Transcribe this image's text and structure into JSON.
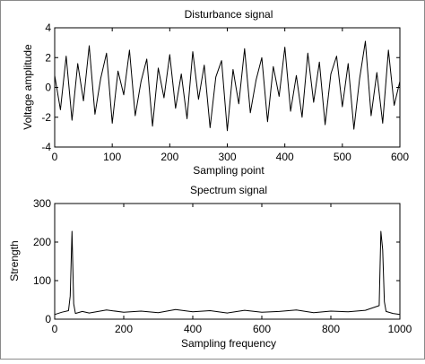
{
  "chart_data": [
    {
      "type": "line",
      "title": "Disturbance signal",
      "xlabel": "Sampling point",
      "ylabel": "Voltage amplitude",
      "xlim": [
        0,
        600
      ],
      "ylim": [
        -4,
        4
      ],
      "xticks": [
        0,
        100,
        200,
        300,
        400,
        500,
        600
      ],
      "yticks": [
        -4,
        -2,
        0,
        2,
        4
      ],
      "grid": false,
      "series": [
        {
          "name": "",
          "description_of_values": "random noise around 0, mostly between -3 and 3",
          "x": [
            0,
            10,
            20,
            30,
            40,
            50,
            60,
            70,
            80,
            90,
            100,
            110,
            120,
            130,
            140,
            150,
            160,
            170,
            180,
            190,
            200,
            210,
            220,
            230,
            240,
            250,
            260,
            270,
            280,
            290,
            300,
            310,
            320,
            330,
            340,
            350,
            360,
            370,
            380,
            390,
            400,
            410,
            420,
            430,
            440,
            450,
            460,
            470,
            480,
            490,
            500,
            510,
            520,
            530,
            540,
            550,
            560,
            570,
            580,
            590,
            600
          ],
          "y": [
            0.8,
            -1.5,
            2.1,
            -2.2,
            1.6,
            -0.9,
            2.8,
            -1.8,
            0.6,
            2.3,
            -2.4,
            1.1,
            -0.5,
            2.5,
            -1.9,
            0.4,
            1.9,
            -2.6,
            1.3,
            -0.7,
            2.2,
            -1.4,
            0.9,
            -2.1,
            2.4,
            -0.8,
            1.5,
            -2.7,
            0.7,
            1.8,
            -2.9,
            1.2,
            -1.1,
            2.6,
            -1.7,
            0.5,
            2.0,
            -2.3,
            1.4,
            -0.6,
            2.7,
            -1.6,
            0.8,
            -2.0,
            2.3,
            -1.0,
            1.7,
            -2.5,
            0.9,
            2.1,
            -1.3,
            1.6,
            -2.8,
            0.6,
            3.1,
            -1.9,
            1.0,
            -2.4,
            2.5,
            -1.2,
            0.4
          ]
        }
      ]
    },
    {
      "type": "line",
      "title": "Spectrum signal",
      "xlabel": "Sampling frequency",
      "ylabel": "Strength",
      "xlim": [
        0,
        1000
      ],
      "ylim": [
        0,
        300
      ],
      "xticks": [
        0,
        200,
        400,
        600,
        800,
        1000
      ],
      "yticks": [
        0,
        100,
        200,
        300
      ],
      "grid": false,
      "series": [
        {
          "name": "",
          "x": [
            0,
            20,
            40,
            45,
            50,
            55,
            60,
            80,
            100,
            150,
            200,
            250,
            300,
            350,
            400,
            450,
            500,
            550,
            600,
            650,
            700,
            750,
            800,
            850,
            900,
            940,
            945,
            950,
            955,
            960,
            980,
            1000
          ],
          "y": [
            12,
            18,
            22,
            60,
            228,
            40,
            15,
            20,
            16,
            24,
            18,
            21,
            17,
            25,
            19,
            22,
            16,
            23,
            18,
            20,
            24,
            17,
            21,
            19,
            23,
            35,
            228,
            180,
            45,
            20,
            15,
            12
          ]
        }
      ]
    }
  ]
}
